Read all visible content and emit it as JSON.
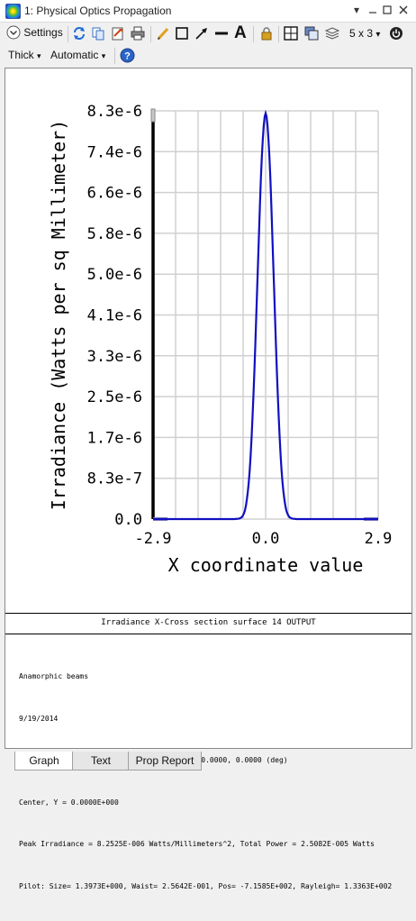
{
  "window": {
    "title": "1: Physical Optics Propagation"
  },
  "toolbar": {
    "settings_label": "Settings",
    "grid_label": "5 x 3",
    "thickness_label": "Thick",
    "thickness_arrow": "▾",
    "mode_label": "Automatic",
    "mode_arrow": "▾",
    "grid_arrow": "▾"
  },
  "chart_data": {
    "type": "line",
    "xlabel": "X coordinate value",
    "ylabel": "Irradiance (Watts per sq Millimeter)",
    "xlim": [
      -2.9,
      2.9
    ],
    "ylim": [
      0.0,
      8.3e-06
    ],
    "x_ticks": [
      "-2.9",
      "0.0",
      "2.9"
    ],
    "y_ticks": [
      "0.0",
      "8.3e-7",
      "1.7e-6",
      "2.5e-6",
      "3.3e-6",
      "4.1e-6",
      "5.0e-6",
      "5.8e-6",
      "6.6e-6",
      "7.4e-6",
      "8.3e-6"
    ],
    "series": [
      {
        "color": "#1010c0",
        "x": [
          -2.9,
          -0.8,
          -0.6,
          -0.5,
          -0.4,
          -0.3,
          -0.2,
          -0.1,
          0.0,
          0.1,
          0.2,
          0.3,
          0.4,
          0.5,
          0.6,
          0.8,
          2.9
        ],
        "y": [
          0.0,
          0.0,
          5e-08,
          3.1e-07,
          1.11e-06,
          2.79e-06,
          5.11e-06,
          7.33e-06,
          8.25e-06,
          7.33e-06,
          5.11e-06,
          2.79e-06,
          1.11e-06,
          3.1e-07,
          5e-08,
          0.0,
          0.0
        ]
      }
    ],
    "grid": true,
    "x_gridlines": 10,
    "y_gridlines": 10
  },
  "caption": "Irradiance X-Cross section surface 14 OUTPUT",
  "info_lines": [
    "Anamorphic beams",
    "9/19/2014",
    "Wavelength 1.54573 µm in index 1.00000 at 0.0000, 0.0000 (deg)",
    "Center, Y = 0.0000E+000",
    "Peak Irradiance = 8.2525E-006 Watts/Millimeters^2, Total Power = 2.5082E-005 Watts",
    "Pilot: Size= 1.3973E+000, Waist= 2.5642E-001, Pos= -7.1585E+002, Rayleigh= 1.3363E+002"
  ],
  "tabs": [
    {
      "label": "Graph",
      "active": true
    },
    {
      "label": "Text",
      "active": false
    },
    {
      "label": "Prop Report",
      "active": false
    }
  ]
}
